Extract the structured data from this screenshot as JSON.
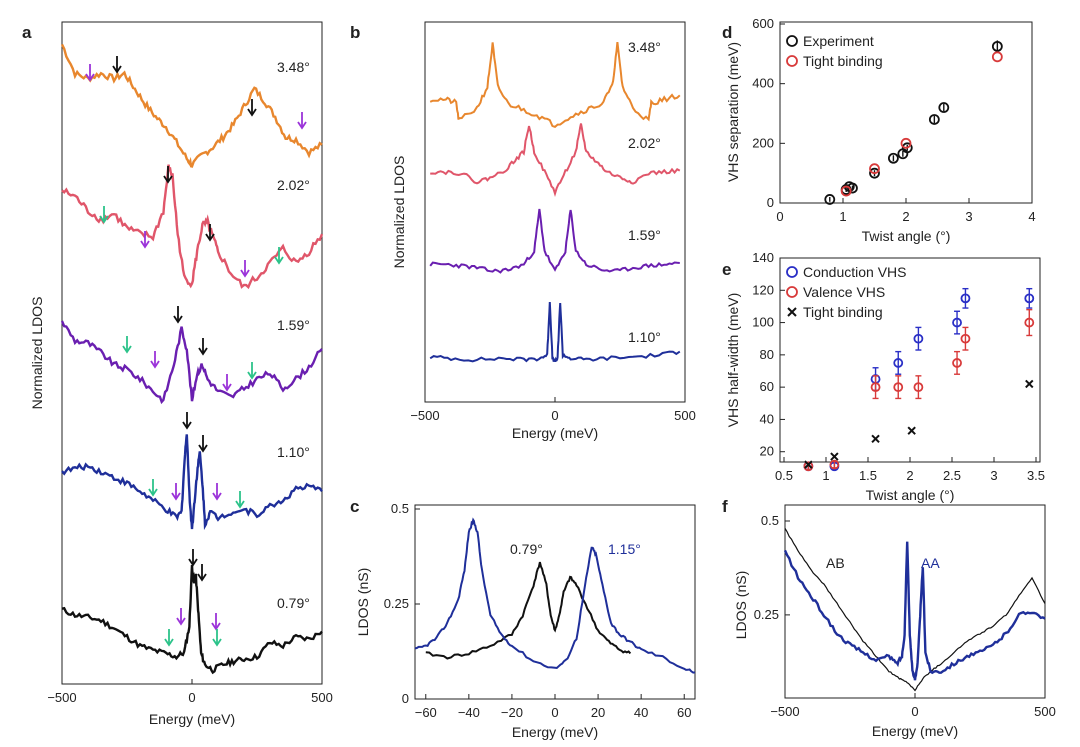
{
  "colors": {
    "orange": "#e8872e",
    "pink": "#e0566a",
    "purple": "#6a1fb0",
    "blue": "#1f2f9a",
    "black": "#111111",
    "red": "#d83a3a",
    "green": "#2cc38a",
    "violet": "#9b33d9",
    "axis": "#222222"
  },
  "chart_data": [
    {
      "id": "a",
      "type": "line",
      "panel_label": "a",
      "xlabel": "Energy (meV)",
      "ylabel": "Normalized LDOS",
      "xlim": [
        -500,
        500
      ],
      "xticks": [
        "-500",
        "0",
        "500"
      ],
      "series": [
        {
          "name": "3.48°",
          "label": "3.48°",
          "color": "#e8872e",
          "x": [
            -500,
            -450,
            -400,
            -350,
            -300,
            -260,
            -220,
            -180,
            -140,
            -100,
            -60,
            -20,
            0,
            40,
            80,
            120,
            160,
            200,
            240,
            280,
            320,
            360,
            400,
            450,
            500
          ],
          "y": [
            0.95,
            0.72,
            0.68,
            0.72,
            0.68,
            0.72,
            0.6,
            0.48,
            0.38,
            0.3,
            0.18,
            0.05,
            0.0,
            0.08,
            0.14,
            0.22,
            0.32,
            0.46,
            0.6,
            0.5,
            0.38,
            0.22,
            0.2,
            0.1,
            0.16
          ]
        },
        {
          "name": "2.02°",
          "label": "2.02°",
          "color": "#e0566a",
          "x": [
            -500,
            -450,
            -400,
            -350,
            -300,
            -250,
            -200,
            -150,
            -110,
            -90,
            -75,
            -55,
            -30,
            0,
            20,
            40,
            60,
            80,
            100,
            150,
            200,
            250,
            300,
            350,
            400,
            450,
            500
          ],
          "y": [
            0.72,
            0.68,
            0.58,
            0.52,
            0.56,
            0.46,
            0.42,
            0.4,
            0.58,
            0.88,
            0.82,
            0.42,
            0.12,
            0.08,
            0.3,
            0.48,
            0.5,
            0.4,
            0.3,
            0.15,
            0.05,
            0.12,
            0.22,
            0.32,
            0.22,
            0.3,
            0.42
          ]
        },
        {
          "name": "1.59°",
          "label": "1.59°",
          "color": "#6a1fb0",
          "x": [
            -500,
            -450,
            -400,
            -350,
            -300,
            -250,
            -200,
            -150,
            -110,
            -70,
            -40,
            -20,
            0,
            20,
            40,
            60,
            100,
            150,
            200,
            250,
            300,
            350,
            400,
            450,
            500
          ],
          "y": [
            0.78,
            0.62,
            0.6,
            0.52,
            0.42,
            0.38,
            0.3,
            0.2,
            0.12,
            0.42,
            0.72,
            0.55,
            0.12,
            0.35,
            0.42,
            0.3,
            0.2,
            0.15,
            0.22,
            0.3,
            0.35,
            0.22,
            0.3,
            0.4,
            0.55
          ]
        },
        {
          "name": "1.10°",
          "label": "1.10°",
          "color": "#1f2f9a",
          "x": [
            -500,
            -450,
            -400,
            -350,
            -300,
            -250,
            -200,
            -150,
            -100,
            -60,
            -40,
            -30,
            -20,
            -10,
            0,
            10,
            20,
            30,
            40,
            50,
            70,
            100,
            150,
            200,
            250,
            300,
            350,
            400,
            450,
            500
          ],
          "y": [
            0.55,
            0.58,
            0.6,
            0.55,
            0.5,
            0.45,
            0.38,
            0.3,
            0.22,
            0.15,
            0.2,
            0.6,
            0.9,
            0.35,
            0.05,
            0.3,
            0.55,
            0.72,
            0.45,
            0.1,
            0.2,
            0.15,
            0.2,
            0.22,
            0.18,
            0.25,
            0.3,
            0.4,
            0.42,
            0.38
          ]
        },
        {
          "name": "0.79°",
          "label": "0.79°",
          "color": "#111111",
          "x": [
            -500,
            -450,
            -400,
            -350,
            -300,
            -250,
            -200,
            -150,
            -100,
            -60,
            -30,
            -10,
            0,
            8,
            15,
            25,
            35,
            50,
            80,
            120,
            160,
            200,
            250,
            300,
            350,
            400,
            450,
            500
          ],
          "y": [
            0.55,
            0.5,
            0.48,
            0.45,
            0.38,
            0.3,
            0.22,
            0.18,
            0.15,
            0.12,
            0.16,
            0.4,
            0.95,
            0.78,
            0.85,
            0.5,
            0.15,
            0.05,
            0.0,
            0.05,
            0.08,
            0.1,
            0.12,
            0.25,
            0.22,
            0.3,
            0.28,
            0.35
          ]
        }
      ]
    },
    {
      "id": "b",
      "type": "line",
      "panel_label": "b",
      "xlabel": "Energy (meV)",
      "ylabel": "Normalized LDOS",
      "xlim": [
        -500,
        500
      ],
      "xticks": [
        "-500",
        "0",
        "500"
      ],
      "series": [
        {
          "name": "3.48°",
          "label": "3.48°",
          "color": "#e8872e",
          "x": [
            -480,
            -420,
            -380,
            -370,
            -300,
            -260,
            -240,
            -220,
            -180,
            -120,
            -60,
            0,
            60,
            120,
            180,
            220,
            240,
            260,
            300,
            360,
            370,
            420,
            480
          ],
          "y": [
            0.3,
            0.3,
            0.26,
            0.05,
            0.2,
            0.45,
            0.95,
            0.45,
            0.25,
            0.18,
            0.1,
            0.0,
            0.1,
            0.18,
            0.25,
            0.45,
            0.95,
            0.45,
            0.2,
            0.05,
            0.26,
            0.3,
            0.35
          ]
        },
        {
          "name": "2.02°",
          "label": "2.02°",
          "color": "#e0566a",
          "x": [
            -480,
            -420,
            -360,
            -300,
            -260,
            -200,
            -160,
            -120,
            -100,
            -80,
            -40,
            0,
            40,
            80,
            100,
            120,
            160,
            200,
            260,
            300,
            360,
            420,
            480
          ],
          "y": [
            0.3,
            0.3,
            0.28,
            0.15,
            0.2,
            0.3,
            0.45,
            0.6,
            1.0,
            0.6,
            0.3,
            0.0,
            0.3,
            0.6,
            1.0,
            0.6,
            0.45,
            0.3,
            0.2,
            0.15,
            0.28,
            0.3,
            0.32
          ]
        },
        {
          "name": "1.59°",
          "label": "1.59°",
          "color": "#6a1fb0",
          "x": [
            -480,
            -420,
            -360,
            -300,
            -240,
            -180,
            -120,
            -80,
            -60,
            -40,
            0,
            40,
            60,
            80,
            120,
            180,
            240,
            300,
            360,
            420,
            480
          ],
          "y": [
            0.2,
            0.2,
            0.18,
            0.15,
            0.1,
            0.12,
            0.2,
            0.4,
            1.0,
            0.4,
            0.1,
            0.4,
            1.0,
            0.4,
            0.2,
            0.12,
            0.1,
            0.15,
            0.18,
            0.2,
            0.22
          ]
        },
        {
          "name": "1.10°",
          "label": "1.10°",
          "color": "#1f2f9a",
          "x": [
            -480,
            -400,
            -300,
            -200,
            -120,
            -60,
            -30,
            -20,
            -10,
            0,
            10,
            20,
            30,
            60,
            120,
            200,
            300,
            400,
            480
          ],
          "y": [
            0.12,
            0.1,
            0.08,
            0.1,
            0.08,
            0.1,
            0.15,
            0.95,
            0.1,
            0.05,
            0.1,
            0.95,
            0.15,
            0.1,
            0.08,
            0.1,
            0.12,
            0.15,
            0.2
          ]
        }
      ]
    },
    {
      "id": "c",
      "type": "line",
      "panel_label": "c",
      "xlabel": "Energy (meV)",
      "ylabel": "LDOS (nS)",
      "xlim": [
        -65,
        65
      ],
      "ylim": [
        0,
        0.5
      ],
      "xticks": [
        "-60",
        "-40",
        "-20",
        "0",
        "20",
        "40",
        "60"
      ],
      "yticks": [
        "0",
        "0.25",
        "0.5"
      ],
      "series": [
        {
          "name": "0.79°",
          "label": "0.79°",
          "color": "#111111",
          "x": [
            -60,
            -50,
            -40,
            -30,
            -20,
            -15,
            -10,
            -7,
            -4,
            -2,
            0,
            2,
            4,
            7,
            10,
            15,
            20,
            25,
            30,
            35
          ],
          "y": [
            0.12,
            0.11,
            0.12,
            0.14,
            0.17,
            0.22,
            0.3,
            0.36,
            0.3,
            0.22,
            0.18,
            0.22,
            0.28,
            0.32,
            0.3,
            0.24,
            0.18,
            0.15,
            0.13,
            0.12
          ]
        },
        {
          "name": "1.15°",
          "label": "1.15°",
          "color": "#1f2f9a",
          "x": [
            -65,
            -60,
            -55,
            -50,
            -45,
            -42,
            -40,
            -38,
            -36,
            -34,
            -30,
            -25,
            -20,
            -10,
            0,
            5,
            10,
            14,
            17,
            19,
            22,
            26,
            30,
            35,
            40,
            50,
            60,
            65
          ],
          "y": [
            0.13,
            0.14,
            0.16,
            0.2,
            0.26,
            0.34,
            0.44,
            0.47,
            0.44,
            0.34,
            0.22,
            0.17,
            0.14,
            0.1,
            0.08,
            0.1,
            0.16,
            0.3,
            0.4,
            0.38,
            0.3,
            0.2,
            0.17,
            0.15,
            0.13,
            0.11,
            0.08,
            0.07
          ]
        }
      ]
    },
    {
      "id": "d",
      "type": "scatter",
      "panel_label": "d",
      "xlabel": "Twist angle (°)",
      "ylabel": "VHS separation (meV)",
      "xlim": [
        0,
        4
      ],
      "ylim": [
        0,
        600
      ],
      "xticks": [
        "0",
        "1",
        "2",
        "3",
        "4"
      ],
      "yticks": [
        "0",
        "200",
        "400",
        "600"
      ],
      "series": [
        {
          "name": "Experiment",
          "label": "Experiment",
          "color": "#111111",
          "marker": "circle",
          "x": [
            0.79,
            1.05,
            1.1,
            1.15,
            1.5,
            1.8,
            1.95,
            2.02,
            2.45,
            2.6,
            3.45
          ],
          "y": [
            12,
            45,
            55,
            50,
            100,
            150,
            165,
            185,
            280,
            320,
            525
          ],
          "err": [
            8,
            8,
            8,
            8,
            10,
            10,
            10,
            10,
            12,
            12,
            20
          ]
        },
        {
          "name": "Tight binding",
          "label": "Tight binding",
          "color": "#d83a3a",
          "marker": "circle",
          "x": [
            1.05,
            1.5,
            2.0,
            3.45
          ],
          "y": [
            40,
            115,
            200,
            490
          ]
        }
      ]
    },
    {
      "id": "e",
      "type": "scatter",
      "panel_label": "e",
      "xlabel": "Twist angle (°)",
      "ylabel": "VHS half-width (meV)",
      "xlim": [
        0.5,
        3.5
      ],
      "ylim": [
        0,
        140
      ],
      "xticks": [
        "0.5",
        "1",
        "1.5",
        "2",
        "2.5",
        "3",
        "3.5"
      ],
      "yticks": [
        "20",
        "40",
        "60",
        "80",
        "100",
        "120",
        "140"
      ],
      "series": [
        {
          "name": "Conduction VHS",
          "label": "Conduction VHS",
          "color": "#2a2fc6",
          "marker": "circle",
          "x": [
            0.79,
            1.1,
            1.59,
            1.86,
            2.1,
            2.56,
            2.66,
            3.42
          ],
          "y": [
            11,
            11,
            65,
            75,
            90,
            100,
            115,
            115
          ],
          "err": [
            2,
            2,
            7,
            7,
            7,
            7,
            6,
            6
          ]
        },
        {
          "name": "Valence VHS",
          "label": "Valence VHS",
          "color": "#d83a3a",
          "marker": "circle",
          "x": [
            0.79,
            1.1,
            1.59,
            1.86,
            2.1,
            2.56,
            2.66,
            3.42
          ],
          "y": [
            11,
            12,
            60,
            60,
            60,
            75,
            90,
            100
          ],
          "err": [
            2,
            2,
            7,
            7,
            7,
            7,
            7,
            8
          ]
        },
        {
          "name": "Tight binding",
          "label": "Tight binding",
          "color": "#111111",
          "marker": "x",
          "x": [
            0.79,
            1.1,
            1.59,
            2.02,
            3.42
          ],
          "y": [
            12,
            17,
            28,
            33,
            62
          ]
        }
      ]
    },
    {
      "id": "f",
      "type": "line",
      "panel_label": "f",
      "xlabel": "Energy (meV)",
      "ylabel": "LDOS (nS)",
      "xlim": [
        -500,
        500
      ],
      "ylim": [
        0.05,
        0.5
      ],
      "xticks": [
        "-500",
        "0",
        "500"
      ],
      "yticks": [
        "0.25",
        "0.5"
      ],
      "series": [
        {
          "name": "AB",
          "label": "AB",
          "color": "#111111",
          "x": [
            -500,
            -450,
            -400,
            -350,
            -300,
            -250,
            -200,
            -150,
            -100,
            -60,
            -30,
            0,
            30,
            60,
            100,
            150,
            200,
            250,
            300,
            350,
            400,
            450,
            500
          ],
          "y": [
            0.48,
            0.42,
            0.37,
            0.33,
            0.28,
            0.23,
            0.18,
            0.14,
            0.1,
            0.08,
            0.07,
            0.05,
            0.08,
            0.1,
            0.12,
            0.15,
            0.18,
            0.2,
            0.22,
            0.25,
            0.3,
            0.35,
            0.28
          ]
        },
        {
          "name": "AA",
          "label": "AA",
          "color": "#1f2f9a",
          "x": [
            -500,
            -450,
            -400,
            -350,
            -300,
            -250,
            -200,
            -150,
            -100,
            -70,
            -50,
            -40,
            -30,
            -20,
            -10,
            0,
            10,
            20,
            30,
            40,
            60,
            100,
            150,
            200,
            250,
            300,
            350,
            400,
            450,
            500
          ],
          "y": [
            0.42,
            0.35,
            0.3,
            0.25,
            0.2,
            0.17,
            0.15,
            0.13,
            0.14,
            0.12,
            0.14,
            0.2,
            0.45,
            0.2,
            0.1,
            0.08,
            0.12,
            0.25,
            0.38,
            0.15,
            0.1,
            0.1,
            0.12,
            0.14,
            0.15,
            0.17,
            0.2,
            0.25,
            0.26,
            0.24
          ]
        }
      ]
    }
  ]
}
